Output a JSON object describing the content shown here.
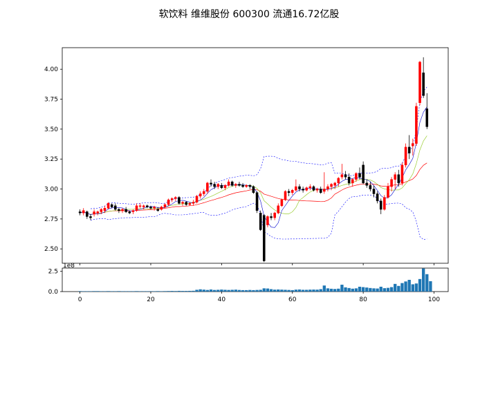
{
  "chart_data": {
    "type": "candlestick",
    "title": "软饮料 维维股份 600300 流通16.72亿股",
    "price_axis": {
      "ylim": [
        2.38,
        4.18
      ],
      "ticks": [
        2.5,
        2.75,
        3.0,
        3.25,
        3.5,
        3.75,
        4.0
      ],
      "tick_labels": [
        "2.50",
        "2.75",
        "3.00",
        "3.25",
        "3.50",
        "3.75",
        "4.00"
      ]
    },
    "x_axis": {
      "xlim": [
        -5,
        104
      ],
      "ticks": [
        0,
        20,
        40,
        60,
        80,
        100
      ],
      "tick_labels": [
        "0",
        "20",
        "40",
        "60",
        "80",
        "100"
      ]
    },
    "volume_axis": {
      "ylim": [
        0,
        2.9
      ],
      "ticks": [
        0,
        2.5
      ],
      "tick_labels": [
        "0.0",
        "2.5"
      ],
      "offset_label": "1e8"
    },
    "colors": {
      "up": "#ff0000",
      "down": "#000000",
      "ma_short": "#ff0000",
      "ma_mid": "#9acd32",
      "ma_long": "#0000cd",
      "bollinger": "#0000ff",
      "volume": "#1f77b4"
    },
    "ohlc": [
      [
        2.81,
        2.83,
        2.78,
        2.8
      ],
      [
        2.8,
        2.84,
        2.78,
        2.82
      ],
      [
        2.81,
        2.82,
        2.75,
        2.77
      ],
      [
        2.77,
        2.79,
        2.74,
        2.76
      ],
      [
        2.79,
        2.83,
        2.77,
        2.81
      ],
      [
        2.8,
        2.82,
        2.78,
        2.81
      ],
      [
        2.81,
        2.84,
        2.79,
        2.83
      ],
      [
        2.82,
        2.86,
        2.8,
        2.84
      ],
      [
        2.84,
        2.89,
        2.83,
        2.88
      ],
      [
        2.87,
        2.88,
        2.84,
        2.85
      ],
      [
        2.86,
        2.88,
        2.82,
        2.83
      ],
      [
        2.83,
        2.84,
        2.8,
        2.82
      ],
      [
        2.82,
        2.84,
        2.8,
        2.83
      ],
      [
        2.83,
        2.85,
        2.8,
        2.81
      ],
      [
        2.81,
        2.82,
        2.79,
        2.8
      ],
      [
        2.81,
        2.83,
        2.79,
        2.82
      ],
      [
        2.82,
        2.88,
        2.81,
        2.86
      ],
      [
        2.86,
        2.88,
        2.84,
        2.86
      ],
      [
        2.85,
        2.87,
        2.83,
        2.86
      ],
      [
        2.86,
        2.87,
        2.84,
        2.85
      ],
      [
        2.85,
        2.86,
        2.83,
        2.84
      ],
      [
        2.84,
        2.86,
        2.82,
        2.85
      ],
      [
        2.83,
        2.85,
        2.81,
        2.82
      ],
      [
        2.83,
        2.86,
        2.82,
        2.85
      ],
      [
        2.85,
        2.88,
        2.84,
        2.87
      ],
      [
        2.87,
        2.92,
        2.86,
        2.91
      ],
      [
        2.91,
        2.93,
        2.89,
        2.92
      ],
      [
        2.92,
        2.94,
        2.9,
        2.93
      ],
      [
        2.93,
        2.94,
        2.87,
        2.88
      ],
      [
        2.88,
        2.9,
        2.86,
        2.89
      ],
      [
        2.89,
        2.9,
        2.86,
        2.87
      ],
      [
        2.87,
        2.89,
        2.86,
        2.88
      ],
      [
        2.88,
        2.91,
        2.86,
        2.89
      ],
      [
        2.89,
        2.95,
        2.88,
        2.94
      ],
      [
        2.94,
        2.98,
        2.92,
        2.96
      ],
      [
        2.96,
        3.0,
        2.94,
        2.98
      ],
      [
        2.98,
        3.06,
        2.96,
        3.05
      ],
      [
        3.05,
        3.08,
        3.02,
        3.04
      ],
      [
        3.04,
        3.06,
        3.0,
        3.02
      ],
      [
        3.02,
        3.05,
        3.0,
        3.04
      ],
      [
        3.03,
        3.05,
        3.0,
        3.01
      ],
      [
        3.01,
        3.04,
        2.99,
        3.03
      ],
      [
        3.03,
        3.08,
        3.02,
        3.06
      ],
      [
        3.06,
        3.07,
        3.02,
        3.03
      ],
      [
        3.03,
        3.05,
        3.01,
        3.04
      ],
      [
        3.04,
        3.06,
        3.02,
        3.03
      ],
      [
        3.03,
        3.05,
        3.01,
        3.02
      ],
      [
        3.02,
        3.04,
        3.01,
        3.03
      ],
      [
        3.03,
        3.04,
        3.0,
        3.02
      ],
      [
        3.02,
        3.03,
        2.96,
        2.97
      ],
      [
        2.97,
        2.98,
        2.8,
        2.82
      ],
      [
        2.8,
        2.82,
        2.65,
        2.66
      ],
      [
        2.78,
        2.79,
        2.39,
        2.4
      ],
      [
        2.7,
        2.78,
        2.68,
        2.77
      ],
      [
        2.77,
        2.8,
        2.74,
        2.76
      ],
      [
        2.76,
        2.81,
        2.74,
        2.8
      ],
      [
        2.8,
        2.88,
        2.79,
        2.86
      ],
      [
        2.86,
        2.92,
        2.85,
        2.91
      ],
      [
        2.91,
        2.99,
        2.9,
        2.98
      ],
      [
        2.98,
        3.0,
        2.94,
        2.97
      ],
      [
        2.97,
        3.0,
        2.95,
        2.99
      ],
      [
        2.99,
        3.08,
        2.98,
        3.02
      ],
      [
        3.02,
        3.04,
        2.98,
        3.0
      ],
      [
        3.0,
        3.02,
        2.97,
        2.99
      ],
      [
        2.99,
        3.02,
        2.98,
        3.01
      ],
      [
        3.01,
        3.04,
        2.99,
        3.02
      ],
      [
        3.02,
        3.03,
        2.98,
        2.99
      ],
      [
        2.99,
        3.01,
        2.97,
        3.0
      ],
      [
        3.0,
        3.02,
        2.96,
        2.97
      ],
      [
        2.98,
        3.14,
        2.96,
        3.0
      ],
      [
        3.0,
        3.04,
        2.98,
        3.02
      ],
      [
        3.02,
        3.05,
        2.99,
        3.04
      ],
      [
        3.03,
        3.06,
        3.0,
        3.05
      ],
      [
        3.05,
        3.1,
        3.02,
        3.09
      ],
      [
        3.1,
        3.21,
        3.08,
        3.12
      ],
      [
        3.12,
        3.15,
        3.08,
        3.1
      ],
      [
        3.1,
        3.13,
        3.03,
        3.05
      ],
      [
        3.05,
        3.09,
        3.02,
        3.08
      ],
      [
        3.08,
        3.14,
        3.06,
        3.13
      ],
      [
        3.13,
        3.18,
        3.08,
        3.1
      ],
      [
        3.2,
        3.23,
        3.04,
        3.05
      ],
      [
        3.05,
        3.08,
        3.01,
        3.03
      ],
      [
        3.03,
        3.06,
        2.98,
        3.0
      ],
      [
        3.0,
        3.03,
        2.93,
        2.96
      ],
      [
        2.96,
        2.98,
        2.88,
        2.9
      ],
      [
        2.9,
        2.92,
        2.79,
        2.83
      ],
      [
        2.83,
        2.95,
        2.82,
        2.93
      ],
      [
        2.93,
        3.05,
        2.92,
        3.02
      ],
      [
        3.02,
        3.1,
        2.98,
        3.08
      ],
      [
        3.08,
        3.14,
        3.0,
        3.12
      ],
      [
        3.12,
        3.16,
        3.02,
        3.05
      ],
      [
        3.05,
        3.22,
        3.03,
        3.2
      ],
      [
        3.2,
        3.38,
        3.18,
        3.35
      ],
      [
        3.35,
        3.45,
        3.25,
        3.3
      ],
      [
        3.36,
        3.42,
        3.28,
        3.38
      ],
      [
        3.38,
        3.72,
        3.36,
        3.69
      ],
      [
        3.72,
        4.07,
        3.7,
        4.06
      ],
      [
        3.97,
        4.1,
        3.76,
        3.78
      ],
      [
        3.67,
        3.8,
        3.5,
        3.52
      ]
    ],
    "volume": [
      0.06,
      0.05,
      0.05,
      0.05,
      0.06,
      0.06,
      0.05,
      0.05,
      0.06,
      0.05,
      0.05,
      0.06,
      0.05,
      0.05,
      0.05,
      0.05,
      0.06,
      0.05,
      0.05,
      0.05,
      0.05,
      0.05,
      0.06,
      0.05,
      0.06,
      0.07,
      0.08,
      0.07,
      0.09,
      0.08,
      0.08,
      0.09,
      0.1,
      0.22,
      0.28,
      0.24,
      0.2,
      0.26,
      0.2,
      0.22,
      0.25,
      0.22,
      0.2,
      0.22,
      0.24,
      0.2,
      0.18,
      0.18,
      0.2,
      0.18,
      0.2,
      0.22,
      0.4,
      0.38,
      0.3,
      0.24,
      0.26,
      0.24,
      0.22,
      0.2,
      0.18,
      0.24,
      0.26,
      0.22,
      0.22,
      0.24,
      0.25,
      0.24,
      0.3,
      0.75,
      0.4,
      0.35,
      0.32,
      0.36,
      0.85,
      0.52,
      0.44,
      0.36,
      0.4,
      0.6,
      0.55,
      0.5,
      0.44,
      0.4,
      0.38,
      0.6,
      0.42,
      0.46,
      0.55,
      0.95,
      0.7,
      1.05,
      1.25,
      1.45,
      0.9,
      1.0,
      1.55,
      2.85,
      2.15,
      1.28
    ]
  }
}
